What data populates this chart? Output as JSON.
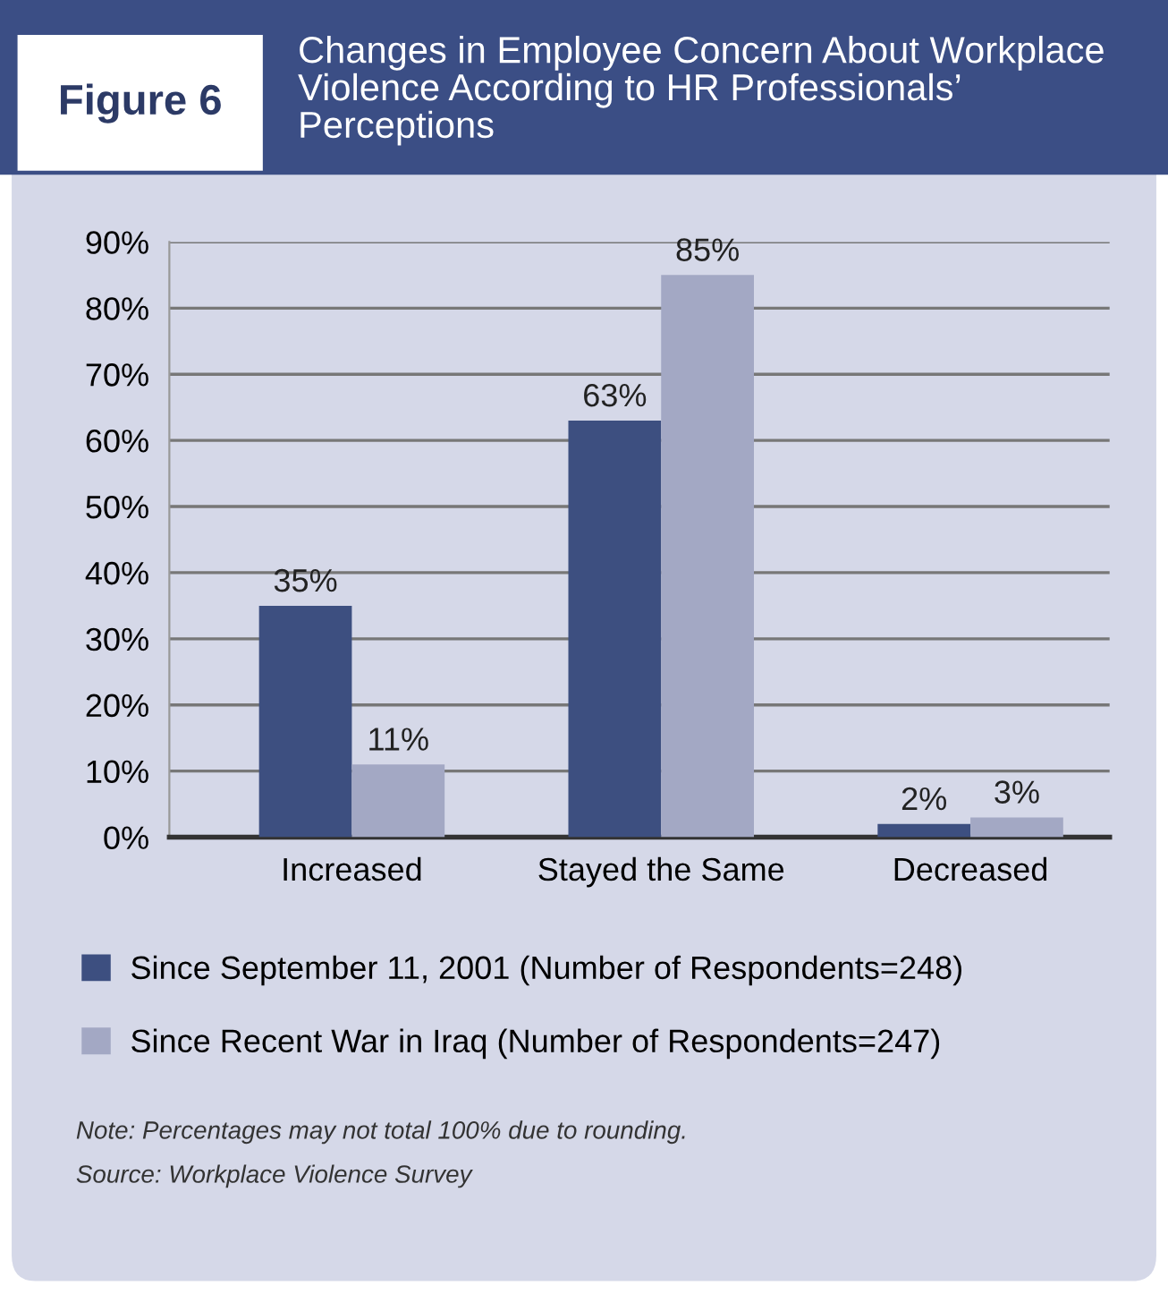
{
  "chart_data": {
    "type": "bar",
    "title": "Changes in Employee Concern About Workplace Violence According to HR Professionals’ Perceptions",
    "subtitle": "Figure 6",
    "categories": [
      "Increased",
      "Stayed the Same",
      "Decreased"
    ],
    "series": [
      {
        "name": "Since September 11, 2001 (Number of Respondents=248)",
        "color": "#3d4f80",
        "values": [
          35,
          63,
          2
        ],
        "value_labels": [
          "35%",
          "63%",
          "2%"
        ]
      },
      {
        "name": "Since Recent War in Iraq (Number of Respondents=247)",
        "color": "#a3a8c4",
        "values": [
          11,
          85,
          3
        ],
        "value_labels": [
          "11%",
          "85%",
          "3%"
        ]
      }
    ],
    "ylim": [
      0,
      90
    ],
    "yticks": [
      {
        "value": 0,
        "label": "0%"
      },
      {
        "value": 10,
        "label": "10%"
      },
      {
        "value": 20,
        "label": "20%"
      },
      {
        "value": 30,
        "label": "30%"
      },
      {
        "value": 40,
        "label": "40%"
      },
      {
        "value": 50,
        "label": "50%"
      },
      {
        "value": 60,
        "label": "60%"
      },
      {
        "value": 70,
        "label": "70%"
      },
      {
        "value": 80,
        "label": "80%"
      },
      {
        "value": 90,
        "label": "90%"
      }
    ],
    "grid": "y",
    "legend": "bottom",
    "annotations": [
      "Note: Percentages may not total 100% due to rounding.",
      "Source: Workplace Violence Survey"
    ]
  }
}
